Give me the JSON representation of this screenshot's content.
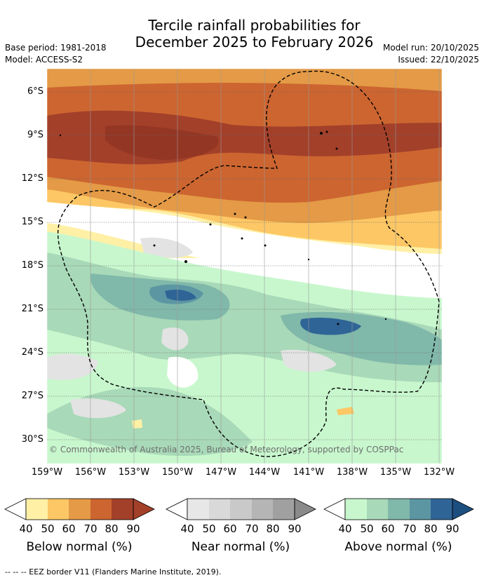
{
  "title": {
    "line1": "Tercile rainfall probabilities for",
    "line2": "December 2025 to February 2026"
  },
  "meta": {
    "base_period": "Base period: 1981-2018",
    "model": "Model: ACCESS-S2",
    "model_run": "Model run: 20/10/2025",
    "issued": "Issued: 22/10/2025"
  },
  "lat_labels": [
    "6°S",
    "9°S",
    "12°S",
    "15°S",
    "18°S",
    "21°S",
    "24°S",
    "27°S",
    "30°S"
  ],
  "lon_labels": [
    "159°W",
    "156°W",
    "153°W",
    "150°W",
    "147°W",
    "144°W",
    "141°W",
    "138°W",
    "135°W",
    "132°W"
  ],
  "credit": "© Commonwealth of Australia 2025, Bureau of Meteorology, supported by COSPPac",
  "legends": [
    {
      "caption": "Below normal (%)",
      "colors": [
        "#fff0a6",
        "#fdc765",
        "#e49a46",
        "#cc6530",
        "#a3402a",
        "#a3402a"
      ]
    },
    {
      "caption": "Near normal (%)",
      "colors": [
        "#e7e7e7",
        "#d9d9d9",
        "#c9c9c9",
        "#b5b5b5",
        "#a0a0a0",
        "#8a8a8a"
      ]
    },
    {
      "caption": "Above normal (%)",
      "colors": [
        "#c8f7cd",
        "#a8d9b8",
        "#80b8aa",
        "#5c96a3",
        "#2f6496",
        "#1d4e80"
      ]
    }
  ],
  "legend_ticks": [
    "40",
    "50",
    "60",
    "70",
    "80",
    "90"
  ],
  "footnote": "--  --  -- EEZ border V11 (Flanders Marine Institute, 2019)."
}
